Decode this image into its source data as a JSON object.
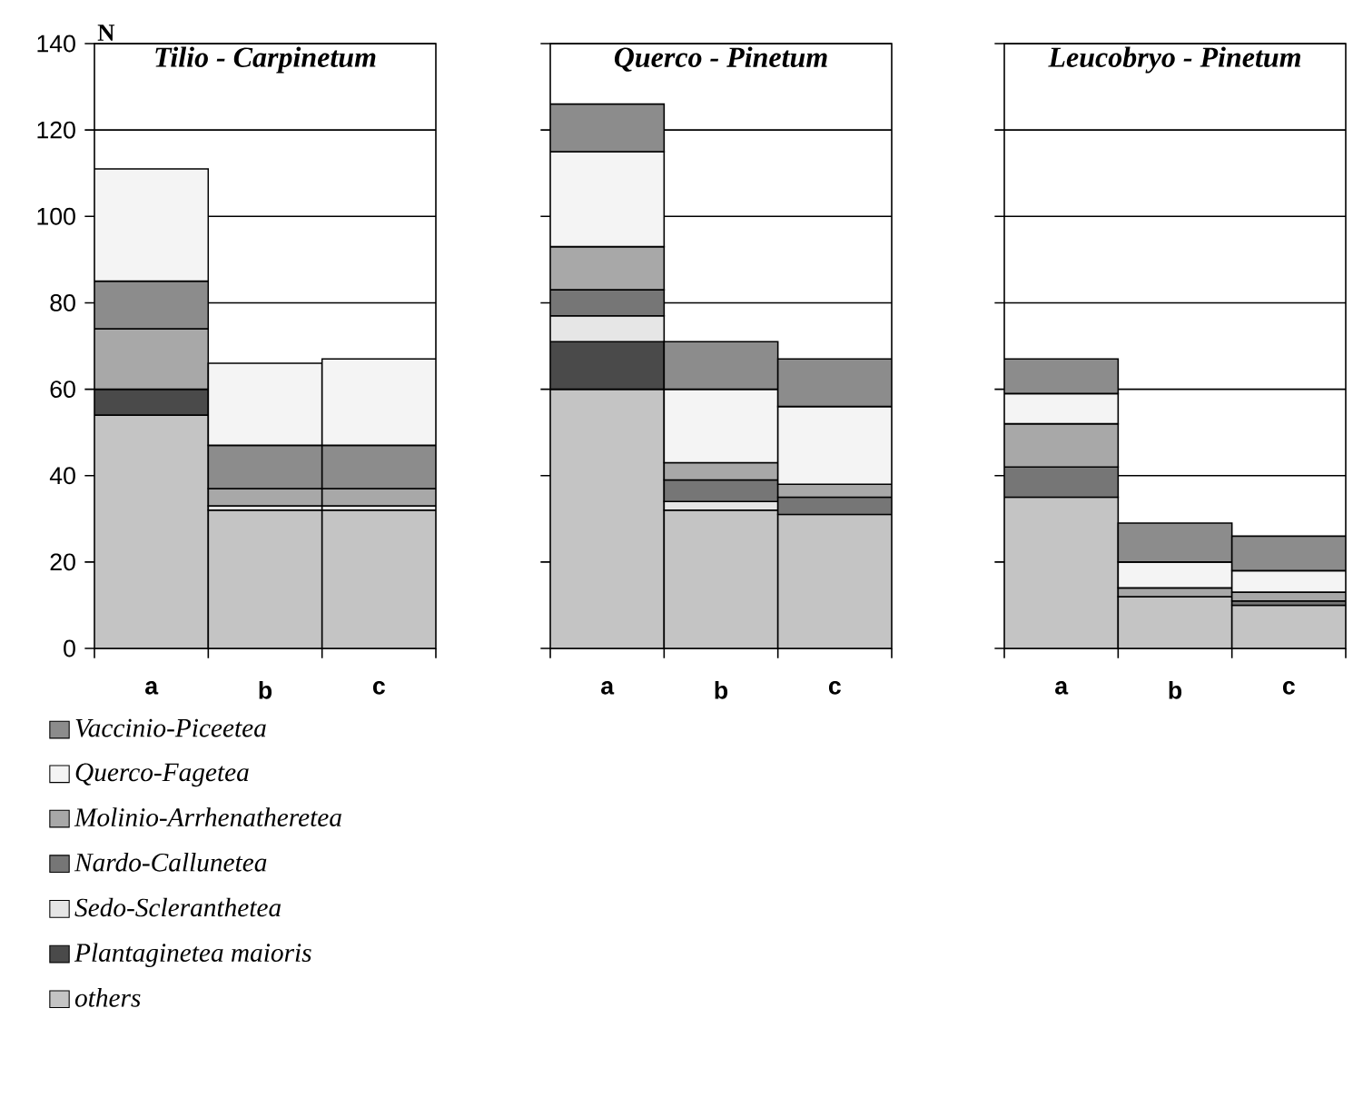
{
  "chart_data": [
    {
      "type": "bar",
      "stacked": true,
      "title": "Tilio - Carpinetum",
      "ylabel": "N",
      "categories": [
        "a",
        "b",
        "c"
      ],
      "ylim": [
        0,
        140
      ],
      "yticks": [
        0,
        20,
        40,
        60,
        80,
        100,
        120,
        140
      ],
      "grid": "y",
      "series": [
        {
          "color": "#c4c4c4",
          "values": [
            54,
            32,
            32
          ]
        },
        {
          "color": "#4a4a4a",
          "values": [
            6,
            null,
            null
          ]
        },
        {
          "color": "#e6e6e6",
          "values": [
            null,
            1,
            1
          ]
        },
        {
          "color": "#a8a8a8",
          "values": [
            14,
            4,
            4
          ]
        },
        {
          "color": "#8c8c8c",
          "values": [
            11,
            10,
            10
          ]
        },
        {
          "color": "#f4f4f4",
          "values": [
            26,
            19,
            20
          ]
        }
      ]
    },
    {
      "type": "bar",
      "stacked": true,
      "title": "Querco - Pinetum",
      "categories": [
        "a",
        "b",
        "c"
      ],
      "ylim": [
        0,
        140
      ],
      "yticks": [
        0,
        20,
        40,
        60,
        80,
        100,
        120,
        140
      ],
      "tick_labels": "x",
      "grid": "y",
      "legend": "bottom left",
      "series": [
        {
          "name": "others",
          "color": "#c4c4c4",
          "values": [
            60,
            32,
            31
          ]
        },
        {
          "name": "Plantaginetea maioris",
          "color": "#4a4a4a",
          "values": [
            11,
            null,
            null
          ]
        },
        {
          "name": "Sedo-Scleranthetea",
          "color": "#e6e6e6",
          "values": [
            6,
            2,
            null
          ]
        },
        {
          "name": "Nardo-Callunetea",
          "color": "#767676",
          "values": [
            6,
            5,
            4
          ]
        },
        {
          "name": "Molinio-Arrhenatheretea",
          "color": "#a8a8a8",
          "values": [
            10,
            4,
            3
          ]
        },
        {
          "name": "Querco-Fagetea",
          "color": "#f4f4f4",
          "values": [
            22,
            17,
            18
          ]
        },
        {
          "name": "Vaccinio-Piceetea",
          "color": "#8c8c8c",
          "values": [
            11,
            11,
            11
          ]
        }
      ]
    },
    {
      "type": "bar",
      "stacked": true,
      "title": "Leucobryo - Pinetum",
      "categories": [
        "a",
        "b",
        "c"
      ],
      "ylim": [
        0,
        140
      ],
      "yticks": [
        0,
        20,
        40,
        60,
        80,
        100,
        120,
        140
      ],
      "tick_labels": "x",
      "grid": "y",
      "series": [
        {
          "color": "#c4c4c4",
          "values": [
            35,
            12,
            10
          ]
        },
        {
          "color": "#767676",
          "values": [
            7,
            null,
            1
          ]
        },
        {
          "color": "#a8a8a8",
          "values": [
            10,
            2,
            2
          ]
        },
        {
          "color": "#f4f4f4",
          "values": [
            7,
            6,
            5
          ]
        },
        {
          "color": "#8c8c8c",
          "values": [
            8,
            9,
            8
          ]
        }
      ]
    }
  ]
}
